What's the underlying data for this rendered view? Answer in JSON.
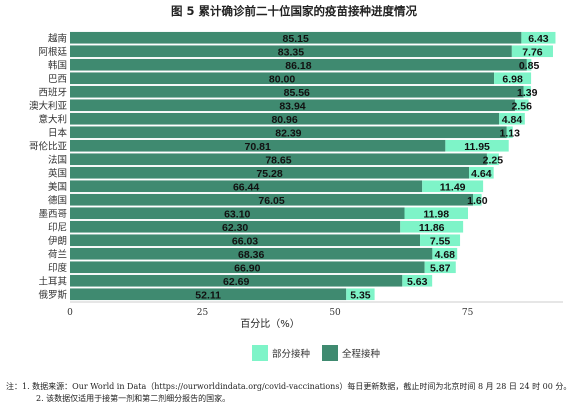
{
  "chart_data": {
    "type": "bar",
    "orientation": "horizontal",
    "stacked": true,
    "title": "图 5  累计确诊前二十位国家的疫苗接种进度情况",
    "xlabel": "百分比（%）",
    "ylabel": "",
    "xlim": [
      0,
      93
    ],
    "xticks": [
      "0",
      "25",
      "50",
      "75"
    ],
    "grid": false,
    "legend_position": "bottom",
    "categories": [
      "越南",
      "阿根廷",
      "韩国",
      "巴西",
      "西班牙",
      "澳大利亚",
      "意大利",
      "日本",
      "哥伦比亚",
      "法国",
      "英国",
      "美国",
      "德国",
      "墨西哥",
      "印尼",
      "伊朗",
      "荷兰",
      "印度",
      "土耳其",
      "俄罗斯"
    ],
    "series": [
      {
        "name": "全程接种",
        "color": "#3f8a70",
        "values": [
          85.15,
          83.35,
          86.18,
          80.0,
          85.56,
          83.94,
          80.96,
          82.39,
          70.81,
          78.65,
          75.28,
          66.44,
          76.05,
          63.1,
          62.3,
          66.03,
          68.36,
          66.9,
          62.69,
          52.11
        ],
        "labels": [
          "85.15",
          "83.35",
          "86.18",
          "80.00",
          "85.56",
          "83.94",
          "80.96",
          "82.39",
          "70.81",
          "78.65",
          "75.28",
          "66.44",
          "76.05",
          "63.10",
          "62.30",
          "66.03",
          "68.36",
          "66.90",
          "62.69",
          "52.11"
        ]
      },
      {
        "name": "部分接种",
        "color": "#7ef4c8",
        "values": [
          6.43,
          7.76,
          0.85,
          6.98,
          1.39,
          2.56,
          4.84,
          1.13,
          11.95,
          2.25,
          4.64,
          11.49,
          1.6,
          11.98,
          11.86,
          7.55,
          4.68,
          5.87,
          5.63,
          5.35
        ],
        "labels": [
          "6.43",
          "7.76",
          "0.85",
          "6.98",
          "1.39",
          "2.56",
          "4.84",
          "1.13",
          "11.95",
          "2.25",
          "4.64",
          "11.49",
          "1.60",
          "11.98",
          "11.86",
          "7.55",
          "4.68",
          "5.87",
          "5.63",
          "5.35"
        ]
      }
    ],
    "legend": [
      {
        "name": "部分接种",
        "color": "#7ef4c8"
      },
      {
        "name": "全程接种",
        "color": "#3f8a70"
      }
    ]
  },
  "notes": {
    "line1": "注：1. 数据来源：Our World in Data（https://ourworldindata.org/covid-vaccinations）每日更新数据，截止时间为北京时间 8 月 28 日 24 时 00 分。",
    "line2": "2. 该数据仅适用于接第一剂和第二剂细分报告的国家。"
  }
}
